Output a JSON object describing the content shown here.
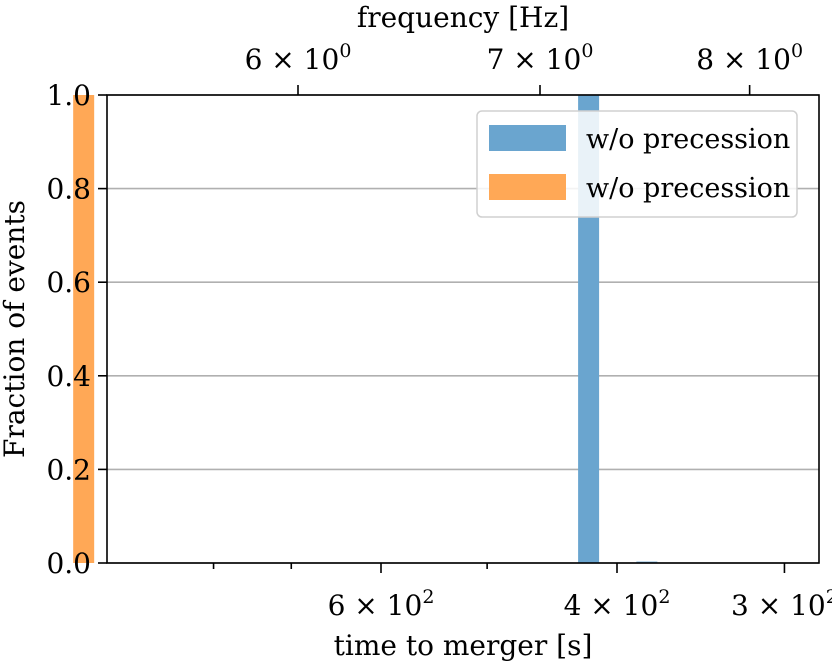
{
  "chart_data": {
    "type": "bar",
    "ylabel": "Fraction of events",
    "xlabel": "time to merger [s]",
    "top_xlabel": "frequency [Hz]",
    "ylim": [
      0,
      1.0
    ],
    "yticks": [
      "0.0",
      "0.2",
      "0.4",
      "0.6",
      "0.8",
      "1.0"
    ],
    "bottom_ticks": [
      {
        "value": 600,
        "label": "6 × 10",
        "exp": "2"
      },
      {
        "value": 400,
        "label": "4 × 10",
        "exp": "2"
      },
      {
        "value": 300,
        "label": "3 × 10",
        "exp": "2"
      }
    ],
    "top_ticks": [
      {
        "value": 6,
        "label": "6 × 10",
        "exp": "0"
      },
      {
        "value": 7,
        "label": "7 × 10",
        "exp": "0"
      },
      {
        "value": 8,
        "label": "8 × 10",
        "exp": "0"
      }
    ],
    "series": [
      {
        "name": "w/o precession",
        "color": "#6aa5cf",
        "time_s": [
          420,
          380
        ],
        "values": [
          1.0,
          0.003
        ]
      },
      {
        "name": "w/o precession",
        "color": "#ffa856",
        "time_s": [
          1000
        ],
        "values": [
          1.0
        ]
      }
    ],
    "grid": "horizontal",
    "legend_position": "top-right"
  }
}
